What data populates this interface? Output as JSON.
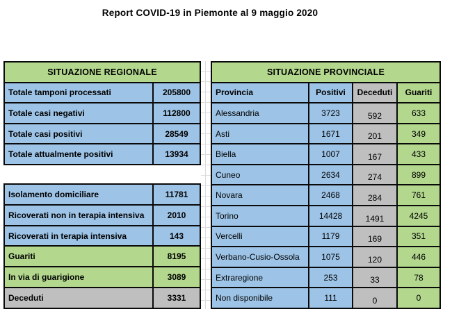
{
  "title": "Report COVID-19 in Piemonte al 9 maggio 2020",
  "colors": {
    "cell_blue": "#9DC3E6",
    "cell_green": "#B2D78D",
    "cell_gray": "#BFBFBF",
    "table_border": "#0A0A0A",
    "gridline_gray": "#DCDCDC"
  },
  "regional": {
    "header": "SITUAZIONE REGIONALE",
    "summary_rows": [
      {
        "label": "Totale tamponi processati",
        "value": "205800"
      },
      {
        "label": "Totale casi negativi",
        "value": "112800"
      },
      {
        "label": "Totale casi positivi",
        "value": "28549"
      },
      {
        "label": "Totale attualmente positivi",
        "value": "13934"
      }
    ],
    "detail_rows": [
      {
        "label": "Isolamento domiciliare",
        "value": "11781"
      },
      {
        "label": "Ricoverati non in terapia intensiva",
        "value": "2010"
      },
      {
        "label": "Ricoverati in terapia intensiva",
        "value": "143"
      },
      {
        "label": "Guariti",
        "value": "8195"
      },
      {
        "label": "In via di guarigione",
        "value": "3089"
      },
      {
        "label": "Deceduti",
        "value": "3331"
      }
    ]
  },
  "provincial": {
    "header": "SITUAZIONE PROVINCIALE",
    "columns": [
      "Provincia",
      "Positivi",
      "Deceduti",
      "Guariti"
    ],
    "rows": [
      {
        "name": "Alessandria",
        "positivi": "3723",
        "deceduti": "592",
        "guariti": "633"
      },
      {
        "name": "Asti",
        "positivi": "1671",
        "deceduti": "201",
        "guariti": "349"
      },
      {
        "name": "Biella",
        "positivi": "1007",
        "deceduti": "167",
        "guariti": "433"
      },
      {
        "name": "Cuneo",
        "positivi": "2634",
        "deceduti": "274",
        "guariti": "899"
      },
      {
        "name": "Novara",
        "positivi": "2468",
        "deceduti": "284",
        "guariti": "761"
      },
      {
        "name": "Torino",
        "positivi": "14428",
        "deceduti": "1491",
        "guariti": "4245"
      },
      {
        "name": "Vercelli",
        "positivi": "1179",
        "deceduti": "169",
        "guariti": "351"
      },
      {
        "name": "Verbano-Cusio-Ossola",
        "positivi": "1075",
        "deceduti": "120",
        "guariti": "446"
      },
      {
        "name": "Extraregione",
        "positivi": "253",
        "deceduti": "33",
        "guariti": "78"
      },
      {
        "name": "Non disponibile",
        "positivi": "111",
        "deceduti": "0",
        "guariti": "0"
      }
    ]
  }
}
